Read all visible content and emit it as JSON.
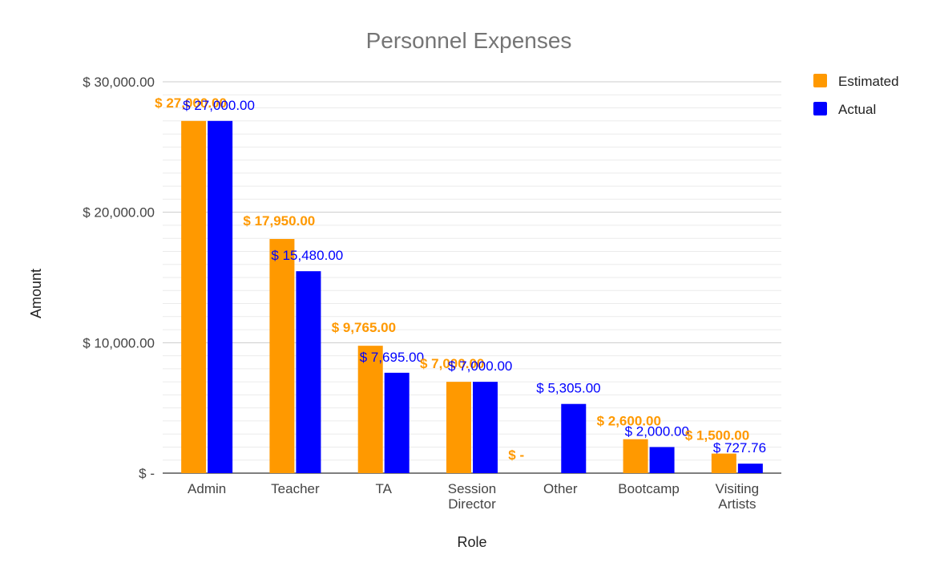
{
  "chart_data": {
    "type": "bar",
    "title": "Personnel Expenses",
    "xlabel": "Role",
    "ylabel": "Amount",
    "categories": [
      [
        "Admin"
      ],
      [
        "Teacher"
      ],
      [
        "TA"
      ],
      [
        "Session",
        "Director"
      ],
      [
        "Other"
      ],
      [
        "Bootcamp"
      ],
      [
        "Visiting",
        "Artists"
      ]
    ],
    "series": [
      {
        "name": "Estimated",
        "color": "#ff9900",
        "values": [
          27000,
          17950,
          9765,
          7000,
          0,
          2600,
          1500
        ],
        "labels": [
          "$ 27,000.00",
          "$ 17,950.00",
          "$ 9,765.00",
          "$ 7,000.00",
          "$ -",
          "$ 2,600.00",
          "$ 1,500.00"
        ]
      },
      {
        "name": "Actual",
        "color": "#0000ff",
        "values": [
          27000,
          15480,
          7695,
          7000,
          5305,
          2000,
          727.76
        ],
        "labels": [
          "$ 27,000.00",
          "$ 15,480.00",
          "$ 7,695.00",
          "$ 7,000.00",
          "$ 5,305.00",
          "$ 2,000.00",
          "$ 727.76"
        ]
      }
    ],
    "ylim": [
      0,
      30000
    ],
    "yticks": [
      {
        "value": 0,
        "label": "$ -"
      },
      {
        "value": 10000,
        "label": "$ 10,000.00"
      },
      {
        "value": 20000,
        "label": "$ 20,000.00"
      },
      {
        "value": 30000,
        "label": "$ 30,000.00"
      }
    ],
    "minor_grid_step": 1000,
    "grid": true,
    "legend_position": "top-right"
  }
}
